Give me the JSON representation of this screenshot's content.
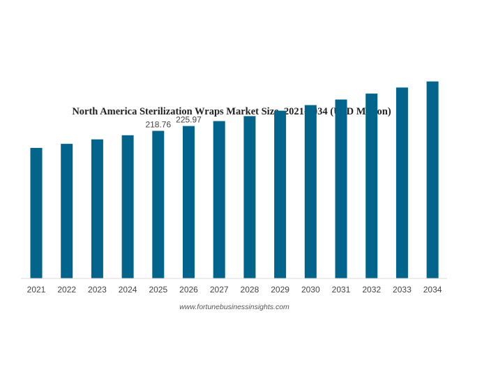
{
  "chart_data": {
    "type": "bar",
    "title": "North America Sterilization Wraps Market Size, 2021-2034 (USD Million)",
    "xlabel": "",
    "ylabel": "",
    "categories": [
      "2021",
      "2022",
      "2023",
      "2024",
      "2025",
      "2026",
      "2027",
      "2028",
      "2029",
      "2030",
      "2031",
      "2032",
      "2033",
      "2034"
    ],
    "values": [
      193.5,
      199.5,
      206.2,
      212.3,
      218.76,
      225.97,
      233.3,
      240.6,
      248.7,
      257.0,
      265.2,
      274.0,
      283.0,
      292.0
    ],
    "data_labels": {
      "2025": "218.76",
      "2026": "225.97"
    },
    "ylim": [
      0,
      300
    ],
    "grid": false,
    "legend": "none",
    "bar_color": "#02648a",
    "source": "www.fortunebusinessinsights.com"
  }
}
